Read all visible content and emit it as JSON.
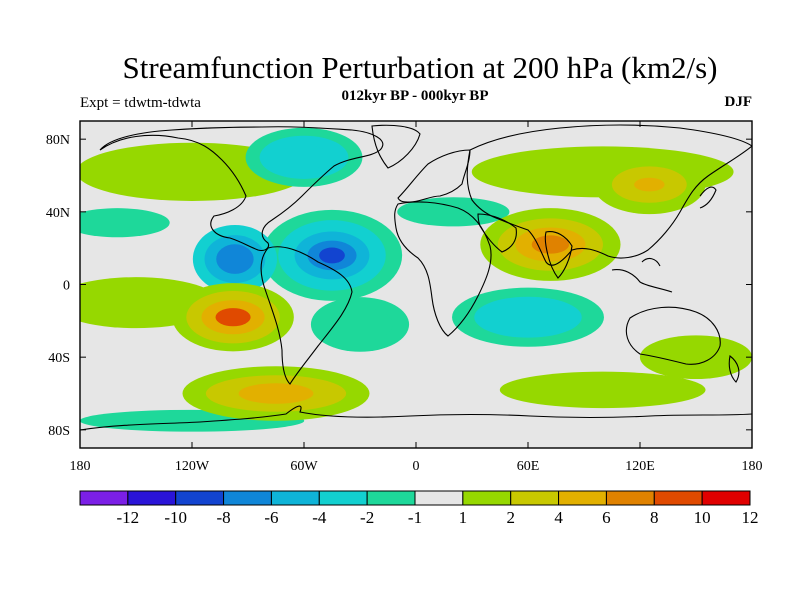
{
  "header": {
    "title": "Streamfunction Perturbation at 200 hPa (km2/s)",
    "subtitle": "012kyr BP - 000kyr BP",
    "left_label": "Expt = tdwtm-tdwta",
    "right_label": "DJF"
  },
  "chart_data": {
    "type": "heatmap",
    "projection": "cylindrical-equidistant",
    "variable": "streamfunction perturbation",
    "units": "km2/s",
    "level": "200 hPa",
    "season": "DJF",
    "lon_range": [
      -180,
      180
    ],
    "lat_range": [
      -90,
      90
    ],
    "x_ticks": [
      {
        "value": -180,
        "label": "180"
      },
      {
        "value": -120,
        "label": "120W"
      },
      {
        "value": -60,
        "label": "60W"
      },
      {
        "value": 0,
        "label": "0"
      },
      {
        "value": 60,
        "label": "60E"
      },
      {
        "value": 120,
        "label": "120E"
      },
      {
        "value": 180,
        "label": "180"
      }
    ],
    "y_ticks": [
      {
        "value": 80,
        "label": "80N"
      },
      {
        "value": 40,
        "label": "40N"
      },
      {
        "value": 0,
        "label": "0"
      },
      {
        "value": -40,
        "label": "40S"
      },
      {
        "value": -80,
        "label": "80S"
      }
    ],
    "contour_levels": [
      -12,
      -10,
      -8,
      -6,
      -4,
      -2,
      -1,
      1,
      2,
      4,
      6,
      8,
      10,
      12
    ],
    "level_labels": [
      "-12",
      "-10",
      "-8",
      "-6",
      "-4",
      "-2",
      "-1",
      "1",
      "2",
      "4",
      "6",
      "8",
      "10",
      "12"
    ],
    "colorbar_colors": [
      "#7b1fe6",
      "#2a14d8",
      "#1244d0",
      "#1086d8",
      "#0fb4d8",
      "#12d0d0",
      "#1ed89a",
      "#e6e6e6",
      "#96d800",
      "#c8c800",
      "#e2b000",
      "#e08200",
      "#e04a00",
      "#e00000"
    ],
    "features": [
      {
        "name": "tropical-atlantic-low",
        "lon": -45,
        "lat": 16,
        "value": -10
      },
      {
        "name": "central-america-low",
        "lon": -97,
        "lat": 14,
        "value": -8
      },
      {
        "name": "north-america-low",
        "lon": -60,
        "lat": 70,
        "value": -4
      },
      {
        "name": "east-pacific-south-high",
        "lon": -98,
        "lat": -18,
        "value": 8
      },
      {
        "name": "india-high",
        "lon": 72,
        "lat": 22,
        "value": 6
      },
      {
        "name": "north-pacific-high",
        "lon": 125,
        "lat": 55,
        "value": 4
      },
      {
        "name": "indian-ocean-south-low",
        "lon": 60,
        "lat": -18,
        "value": -4
      },
      {
        "name": "south-pacific-low",
        "lon": -30,
        "lat": -22,
        "value": -2
      },
      {
        "name": "southern-ocean-high",
        "lon": -75,
        "lat": -60,
        "value": 4
      }
    ]
  }
}
